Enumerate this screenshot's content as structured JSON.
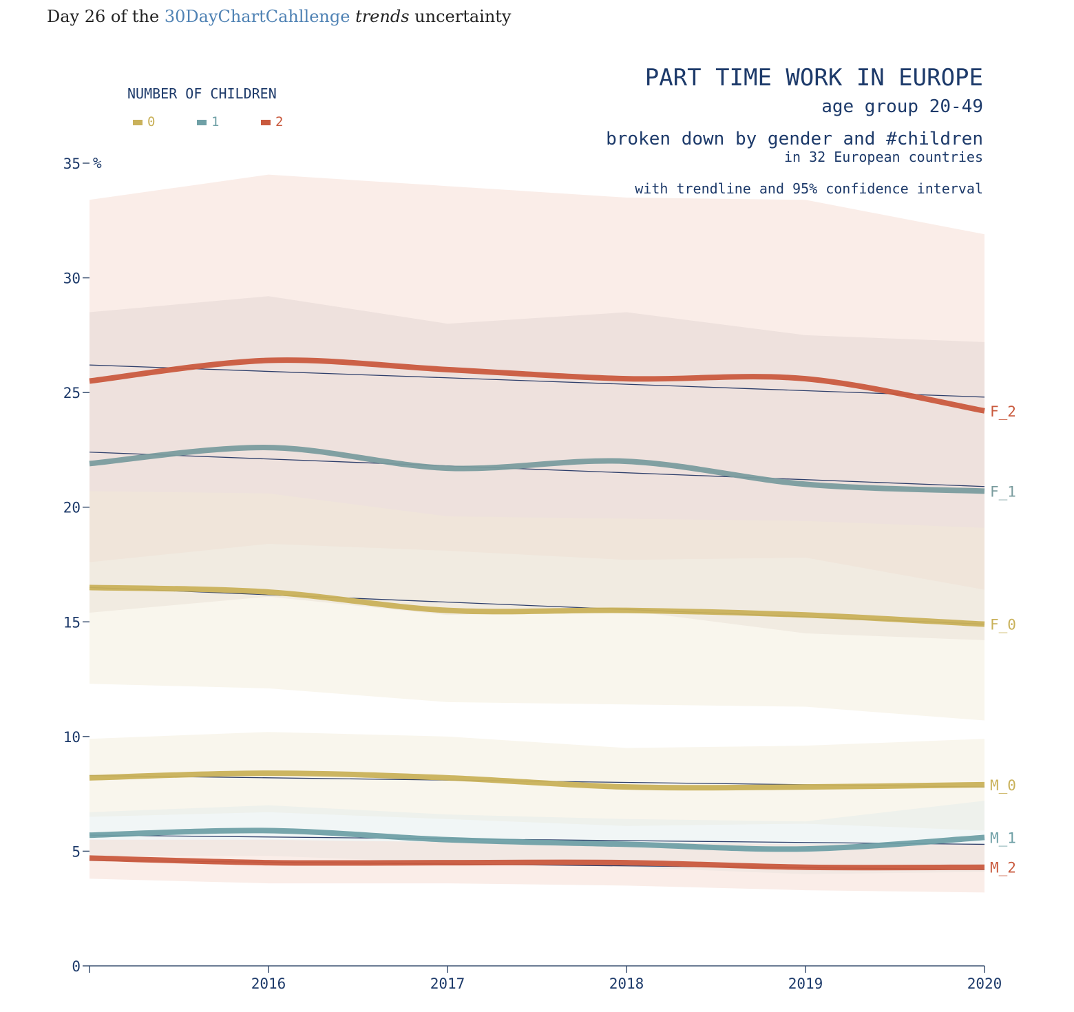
{
  "intro": {
    "prefix": "Day 26 of the ",
    "link": "30DayChartCahllenge",
    "emph": "trends",
    "suffix": " uncertainty"
  },
  "chart_data": {
    "type": "line",
    "title": "PART TIME WORK IN EUROPE",
    "subtitle_lines": [
      "age group 20-49",
      "broken down by gender and #children",
      "in 32 European countries",
      "with trendline and 95% confidence interval"
    ],
    "legend": {
      "title": "NUMBER OF CHILDREN",
      "entries": [
        {
          "label": "0",
          "color": "#c9b15a"
        },
        {
          "label": "1",
          "color": "#6fa0a6"
        },
        {
          "label": "2",
          "color": "#c95a3e"
        }
      ]
    },
    "y_unit": "%",
    "x": [
      2015,
      2016,
      2017,
      2018,
      2019,
      2020
    ],
    "x_tick_labels": [
      "",
      "2016",
      "2017",
      "2018",
      "2019",
      "2020"
    ],
    "y_ticks": [
      0,
      5,
      10,
      15,
      20,
      25,
      30,
      35
    ],
    "xlim": [
      2015,
      2020
    ],
    "ylim": [
      0,
      35
    ],
    "series": [
      {
        "name": "F_2",
        "color": "#c95a3e",
        "band_color": "#f3d6cd",
        "values": [
          25.5,
          26.4,
          26.0,
          25.6,
          25.6,
          24.2
        ],
        "lower": [
          17.6,
          18.4,
          18.1,
          17.7,
          17.8,
          16.4
        ],
        "upper": [
          33.4,
          34.5,
          34.0,
          33.5,
          33.4,
          31.9
        ],
        "trend": [
          26.2,
          24.8
        ]
      },
      {
        "name": "F_1",
        "color": "#7a9c9e",
        "band_color": "#dfd2d0",
        "values": [
          21.9,
          22.6,
          21.7,
          22.0,
          21.0,
          20.7
        ],
        "lower": [
          15.4,
          16.1,
          15.3,
          15.5,
          14.5,
          14.2
        ],
        "upper": [
          28.5,
          29.2,
          28.0,
          28.5,
          27.5,
          27.2
        ],
        "trend": [
          22.4,
          20.9
        ]
      },
      {
        "name": "F_0",
        "color": "#c9b15a",
        "band_color": "#f2ebd6",
        "values": [
          16.5,
          16.3,
          15.5,
          15.5,
          15.3,
          14.9
        ],
        "lower": [
          12.3,
          12.1,
          11.5,
          11.4,
          11.3,
          10.7
        ],
        "upper": [
          20.7,
          20.6,
          19.6,
          19.5,
          19.4,
          19.1
        ],
        "trend": [
          16.5,
          14.9
        ]
      },
      {
        "name": "M_0",
        "color": "#c9b15a",
        "band_color": "#f2ebd6",
        "values": [
          8.2,
          8.4,
          8.2,
          7.8,
          7.8,
          7.9
        ],
        "lower": [
          6.5,
          6.7,
          6.4,
          6.1,
          6.2,
          5.9
        ],
        "upper": [
          9.9,
          10.2,
          10.0,
          9.5,
          9.6,
          9.9
        ],
        "trend": [
          8.3,
          7.8
        ]
      },
      {
        "name": "M_1",
        "color": "#6fa0a6",
        "band_color": "#dfeaea",
        "values": [
          5.7,
          5.9,
          5.5,
          5.3,
          5.1,
          5.6
        ],
        "lower": [
          4.8,
          4.8,
          4.5,
          4.3,
          4.0,
          4.1
        ],
        "upper": [
          6.7,
          7.0,
          6.6,
          6.4,
          6.3,
          7.2
        ],
        "trend": [
          5.7,
          5.3
        ]
      },
      {
        "name": "M_2",
        "color": "#c95a3e",
        "band_color": "#f3d6cd",
        "values": [
          4.7,
          4.5,
          4.5,
          4.5,
          4.3,
          4.3
        ],
        "lower": [
          3.8,
          3.6,
          3.6,
          3.5,
          3.3,
          3.2
        ],
        "upper": [
          5.5,
          5.5,
          5.4,
          5.4,
          5.3,
          5.3
        ],
        "trend": [
          4.6,
          4.2
        ]
      }
    ]
  }
}
